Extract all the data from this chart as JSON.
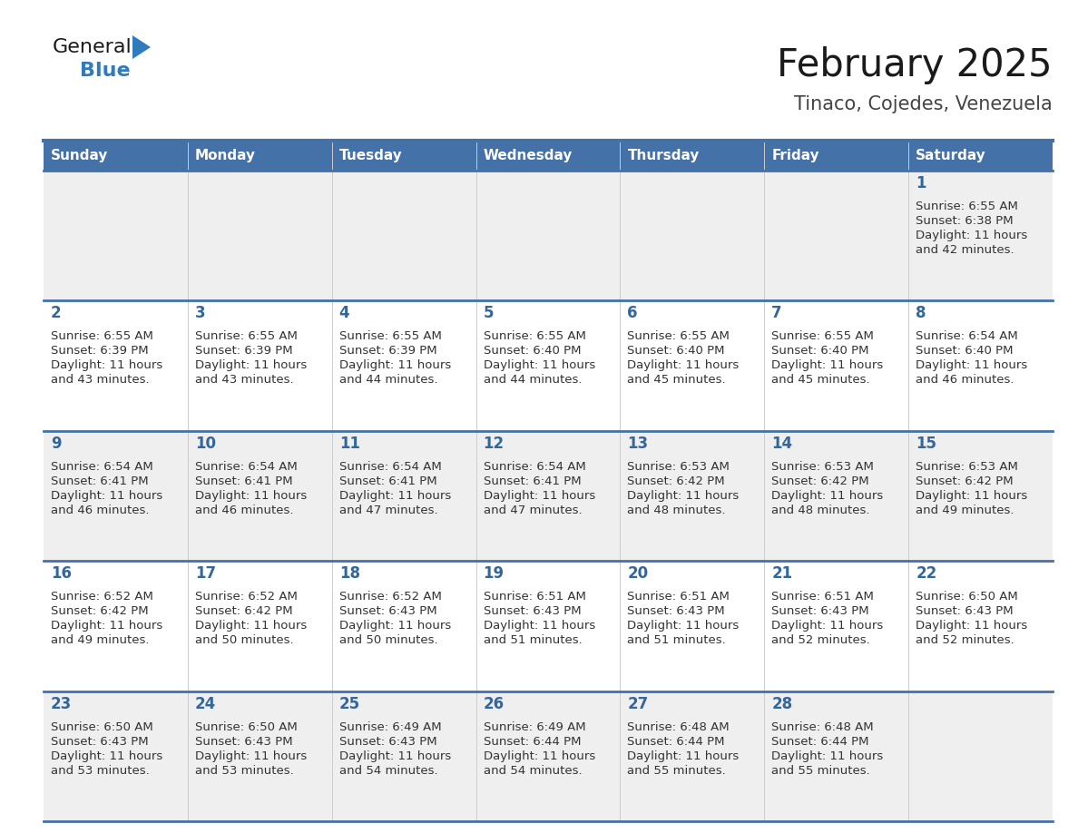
{
  "title": "February 2025",
  "subtitle": "Tinaco, Cojedes, Venezuela",
  "days_of_week": [
    "Sunday",
    "Monday",
    "Tuesday",
    "Wednesday",
    "Thursday",
    "Friday",
    "Saturday"
  ],
  "header_bg": "#4472a8",
  "header_text": "#ffffff",
  "cell_bg_light": "#efefef",
  "cell_bg_white": "#ffffff",
  "day_number_color": "#336699",
  "info_text_color": "#333333",
  "border_color": "#4472a8",
  "logo_general_color": "#1a1a1a",
  "logo_blue_color": "#2e7bbf",
  "calendar_data": [
    [
      null,
      null,
      null,
      null,
      null,
      null,
      {
        "day": "1",
        "sunrise": "6:55 AM",
        "sunset": "6:38 PM",
        "daylight_h": "11 hours",
        "daylight_m": "42 minutes"
      }
    ],
    [
      {
        "day": "2",
        "sunrise": "6:55 AM",
        "sunset": "6:39 PM",
        "daylight_h": "11 hours",
        "daylight_m": "43 minutes"
      },
      {
        "day": "3",
        "sunrise": "6:55 AM",
        "sunset": "6:39 PM",
        "daylight_h": "11 hours",
        "daylight_m": "43 minutes"
      },
      {
        "day": "4",
        "sunrise": "6:55 AM",
        "sunset": "6:39 PM",
        "daylight_h": "11 hours",
        "daylight_m": "44 minutes"
      },
      {
        "day": "5",
        "sunrise": "6:55 AM",
        "sunset": "6:40 PM",
        "daylight_h": "11 hours",
        "daylight_m": "44 minutes"
      },
      {
        "day": "6",
        "sunrise": "6:55 AM",
        "sunset": "6:40 PM",
        "daylight_h": "11 hours",
        "daylight_m": "45 minutes"
      },
      {
        "day": "7",
        "sunrise": "6:55 AM",
        "sunset": "6:40 PM",
        "daylight_h": "11 hours",
        "daylight_m": "45 minutes"
      },
      {
        "day": "8",
        "sunrise": "6:54 AM",
        "sunset": "6:40 PM",
        "daylight_h": "11 hours",
        "daylight_m": "46 minutes"
      }
    ],
    [
      {
        "day": "9",
        "sunrise": "6:54 AM",
        "sunset": "6:41 PM",
        "daylight_h": "11 hours",
        "daylight_m": "46 minutes"
      },
      {
        "day": "10",
        "sunrise": "6:54 AM",
        "sunset": "6:41 PM",
        "daylight_h": "11 hours",
        "daylight_m": "46 minutes"
      },
      {
        "day": "11",
        "sunrise": "6:54 AM",
        "sunset": "6:41 PM",
        "daylight_h": "11 hours",
        "daylight_m": "47 minutes"
      },
      {
        "day": "12",
        "sunrise": "6:54 AM",
        "sunset": "6:41 PM",
        "daylight_h": "11 hours",
        "daylight_m": "47 minutes"
      },
      {
        "day": "13",
        "sunrise": "6:53 AM",
        "sunset": "6:42 PM",
        "daylight_h": "11 hours",
        "daylight_m": "48 minutes"
      },
      {
        "day": "14",
        "sunrise": "6:53 AM",
        "sunset": "6:42 PM",
        "daylight_h": "11 hours",
        "daylight_m": "48 minutes"
      },
      {
        "day": "15",
        "sunrise": "6:53 AM",
        "sunset": "6:42 PM",
        "daylight_h": "11 hours",
        "daylight_m": "49 minutes"
      }
    ],
    [
      {
        "day": "16",
        "sunrise": "6:52 AM",
        "sunset": "6:42 PM",
        "daylight_h": "11 hours",
        "daylight_m": "49 minutes"
      },
      {
        "day": "17",
        "sunrise": "6:52 AM",
        "sunset": "6:42 PM",
        "daylight_h": "11 hours",
        "daylight_m": "50 minutes"
      },
      {
        "day": "18",
        "sunrise": "6:52 AM",
        "sunset": "6:43 PM",
        "daylight_h": "11 hours",
        "daylight_m": "50 minutes"
      },
      {
        "day": "19",
        "sunrise": "6:51 AM",
        "sunset": "6:43 PM",
        "daylight_h": "11 hours",
        "daylight_m": "51 minutes"
      },
      {
        "day": "20",
        "sunrise": "6:51 AM",
        "sunset": "6:43 PM",
        "daylight_h": "11 hours",
        "daylight_m": "51 minutes"
      },
      {
        "day": "21",
        "sunrise": "6:51 AM",
        "sunset": "6:43 PM",
        "daylight_h": "11 hours",
        "daylight_m": "52 minutes"
      },
      {
        "day": "22",
        "sunrise": "6:50 AM",
        "sunset": "6:43 PM",
        "daylight_h": "11 hours",
        "daylight_m": "52 minutes"
      }
    ],
    [
      {
        "day": "23",
        "sunrise": "6:50 AM",
        "sunset": "6:43 PM",
        "daylight_h": "11 hours",
        "daylight_m": "53 minutes"
      },
      {
        "day": "24",
        "sunrise": "6:50 AM",
        "sunset": "6:43 PM",
        "daylight_h": "11 hours",
        "daylight_m": "53 minutes"
      },
      {
        "day": "25",
        "sunrise": "6:49 AM",
        "sunset": "6:43 PM",
        "daylight_h": "11 hours",
        "daylight_m": "54 minutes"
      },
      {
        "day": "26",
        "sunrise": "6:49 AM",
        "sunset": "6:44 PM",
        "daylight_h": "11 hours",
        "daylight_m": "54 minutes"
      },
      {
        "day": "27",
        "sunrise": "6:48 AM",
        "sunset": "6:44 PM",
        "daylight_h": "11 hours",
        "daylight_m": "55 minutes"
      },
      {
        "day": "28",
        "sunrise": "6:48 AM",
        "sunset": "6:44 PM",
        "daylight_h": "11 hours",
        "daylight_m": "55 minutes"
      },
      null
    ]
  ]
}
